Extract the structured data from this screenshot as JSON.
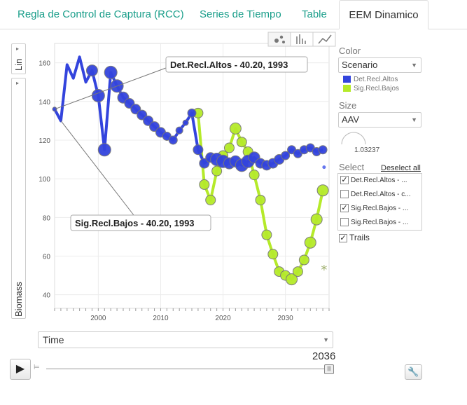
{
  "tabs": [
    {
      "label": "Regla de Control de Captura (RCC)"
    },
    {
      "label": "Series de Tiempo"
    },
    {
      "label": "Table"
    },
    {
      "label": "EEM Dinamico"
    }
  ],
  "chart_views": {
    "bubble": "bubble-chart-icon",
    "bar": "bar-chart-icon",
    "line": "line-chart-icon"
  },
  "y_scale": {
    "label": "Lin"
  },
  "y_axis": {
    "label": "Biomass"
  },
  "x_axis": {
    "selected": "Time"
  },
  "color_panel": {
    "label": "Color",
    "selected": "Scenario",
    "legend": [
      {
        "name": "Det.Recl.Altos",
        "color": "#3344dd"
      },
      {
        "name": "Sig.Recl.Bajos",
        "color": "#b5ea2a"
      }
    ]
  },
  "size_panel": {
    "label": "Size",
    "selected": "AAV",
    "value": "1.03237"
  },
  "select_panel": {
    "label": "Select",
    "deselect_all": "Deselect all",
    "items": [
      {
        "label": "Det.Recl.Altos - ...",
        "checked": true
      },
      {
        "label": "Det.Recl.Altos - c...",
        "checked": false
      },
      {
        "label": "Sig.Recl.Bajos - ...",
        "checked": true
      },
      {
        "label": "Sig.Recl.Bajos - ...",
        "checked": false
      }
    ]
  },
  "trails": {
    "label": "Trails",
    "checked": true
  },
  "time_control": {
    "current": "2036"
  },
  "settings_icon": "wrench-icon",
  "chart_data": {
    "type": "scatter",
    "title": "",
    "xlabel": "",
    "ylabel": "Biomass",
    "xlim": [
      1993,
      2037
    ],
    "ylim": [
      33,
      170
    ],
    "x_ticks": [
      2000,
      2010,
      2020,
      2030
    ],
    "y_ticks": [
      40,
      60,
      80,
      100,
      120,
      140,
      160
    ],
    "grid": true,
    "series": [
      {
        "name": "Det.Recl.Altos",
        "color": "#3344dd",
        "x": [
          1993,
          1994,
          1995,
          1996,
          1997,
          1998,
          1999,
          2000,
          2001,
          2002,
          2003,
          2004,
          2005,
          2006,
          2007,
          2008,
          2009,
          2010,
          2011,
          2012,
          2013,
          2014,
          2015,
          2016,
          2017,
          2018,
          2019,
          2020,
          2021,
          2022,
          2023,
          2024,
          2025,
          2026,
          2027,
          2028,
          2029,
          2030,
          2031,
          2032,
          2033,
          2034,
          2035,
          2036
        ],
        "y": [
          136,
          130,
          159,
          152,
          163,
          150,
          156,
          143,
          115,
          155,
          148,
          142,
          139,
          136,
          133,
          130,
          127,
          124,
          122,
          120,
          125,
          129,
          134,
          115,
          108,
          111,
          110,
          109,
          108,
          109,
          107,
          109,
          111,
          108,
          107,
          108,
          110,
          112,
          115,
          113,
          115,
          116,
          114,
          115
        ],
        "size": [
          3,
          2,
          2,
          2,
          2,
          2,
          8,
          9,
          9,
          9,
          9,
          8,
          7,
          7,
          7,
          7,
          7,
          7,
          6,
          6,
          5,
          4,
          6,
          7,
          7,
          7,
          9,
          9,
          8,
          8,
          9,
          9,
          8,
          7,
          7,
          7,
          7,
          6,
          6,
          6,
          6,
          6,
          6,
          6
        ],
        "point_x": [
          1993,
          1994,
          1995,
          1996,
          1997,
          1998,
          1999,
          2000,
          2001,
          2002,
          2003,
          2004,
          2005,
          2006,
          2007,
          2008,
          2009,
          2010,
          2011,
          2012,
          2013,
          2014,
          2015,
          2016,
          2017,
          2018,
          2019,
          2020,
          2021,
          2022,
          2023,
          2024,
          2025,
          2026,
          2027,
          2028,
          2029,
          2030,
          2031,
          2032,
          2033,
          2034,
          2035,
          2036
        ]
      },
      {
        "name": "Sig.Recl.Bajos",
        "color": "#b5ea2a",
        "x": [
          2016,
          2017,
          2018,
          2019,
          2020,
          2021,
          2022,
          2023,
          2024,
          2025,
          2026,
          2027,
          2028,
          2029,
          2030,
          2031,
          2032,
          2033,
          2034,
          2035,
          2036
        ],
        "y": [
          134,
          97,
          89,
          104,
          112,
          116,
          126,
          119,
          114,
          102,
          89,
          71,
          61,
          52,
          50,
          48,
          52,
          58,
          67,
          79,
          94
        ],
        "size": [
          7,
          7,
          7,
          7,
          7,
          7,
          8,
          7,
          7,
          7,
          7,
          7,
          7,
          7,
          7,
          8,
          7,
          7,
          8,
          8,
          8
        ]
      }
    ],
    "annotations": [
      {
        "text": "Det.Recl.Altos - 40.20, 1993",
        "series": "Det.Recl.Altos"
      },
      {
        "text": "Sig.Recl.Bajos - 40.20, 1993",
        "series": "Sig.Recl.Bajos"
      }
    ]
  }
}
